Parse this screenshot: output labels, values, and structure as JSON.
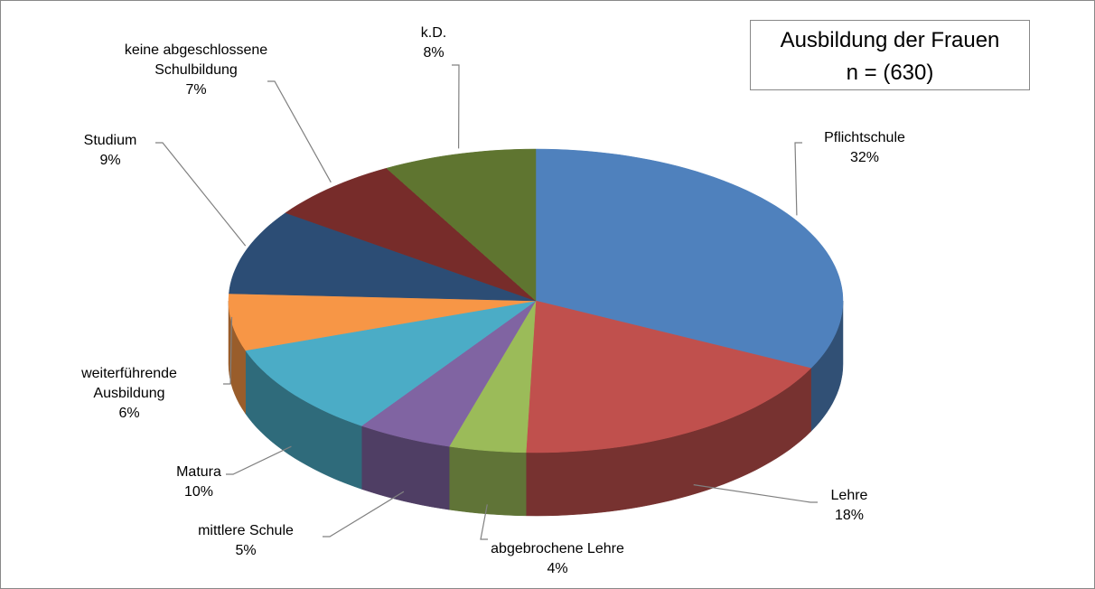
{
  "chart_data": {
    "type": "pie3d",
    "title": "Ausbildung der Frauen",
    "subtitle": "n = (630)",
    "categories": [
      "Pflichtschule",
      "Lehre",
      "abgebrochene Lehre",
      "mittlere Schule",
      "Matura",
      "weiterführende Ausbildung",
      "Studium",
      "keine abgeschlossene Schulbildung",
      "k.D."
    ],
    "values": [
      32,
      18,
      4,
      5,
      10,
      6,
      9,
      7,
      8
    ],
    "value_labels": [
      "32%",
      "18%",
      "4%",
      "5%",
      "10%",
      "6%",
      "9%",
      "7%",
      "8%"
    ],
    "colors": [
      "#4f81bd",
      "#c0504d",
      "#9bbb59",
      "#8064a2",
      "#4bacc6",
      "#f79646",
      "#2c4d75",
      "#772c2a",
      "#5f7530"
    ]
  }
}
